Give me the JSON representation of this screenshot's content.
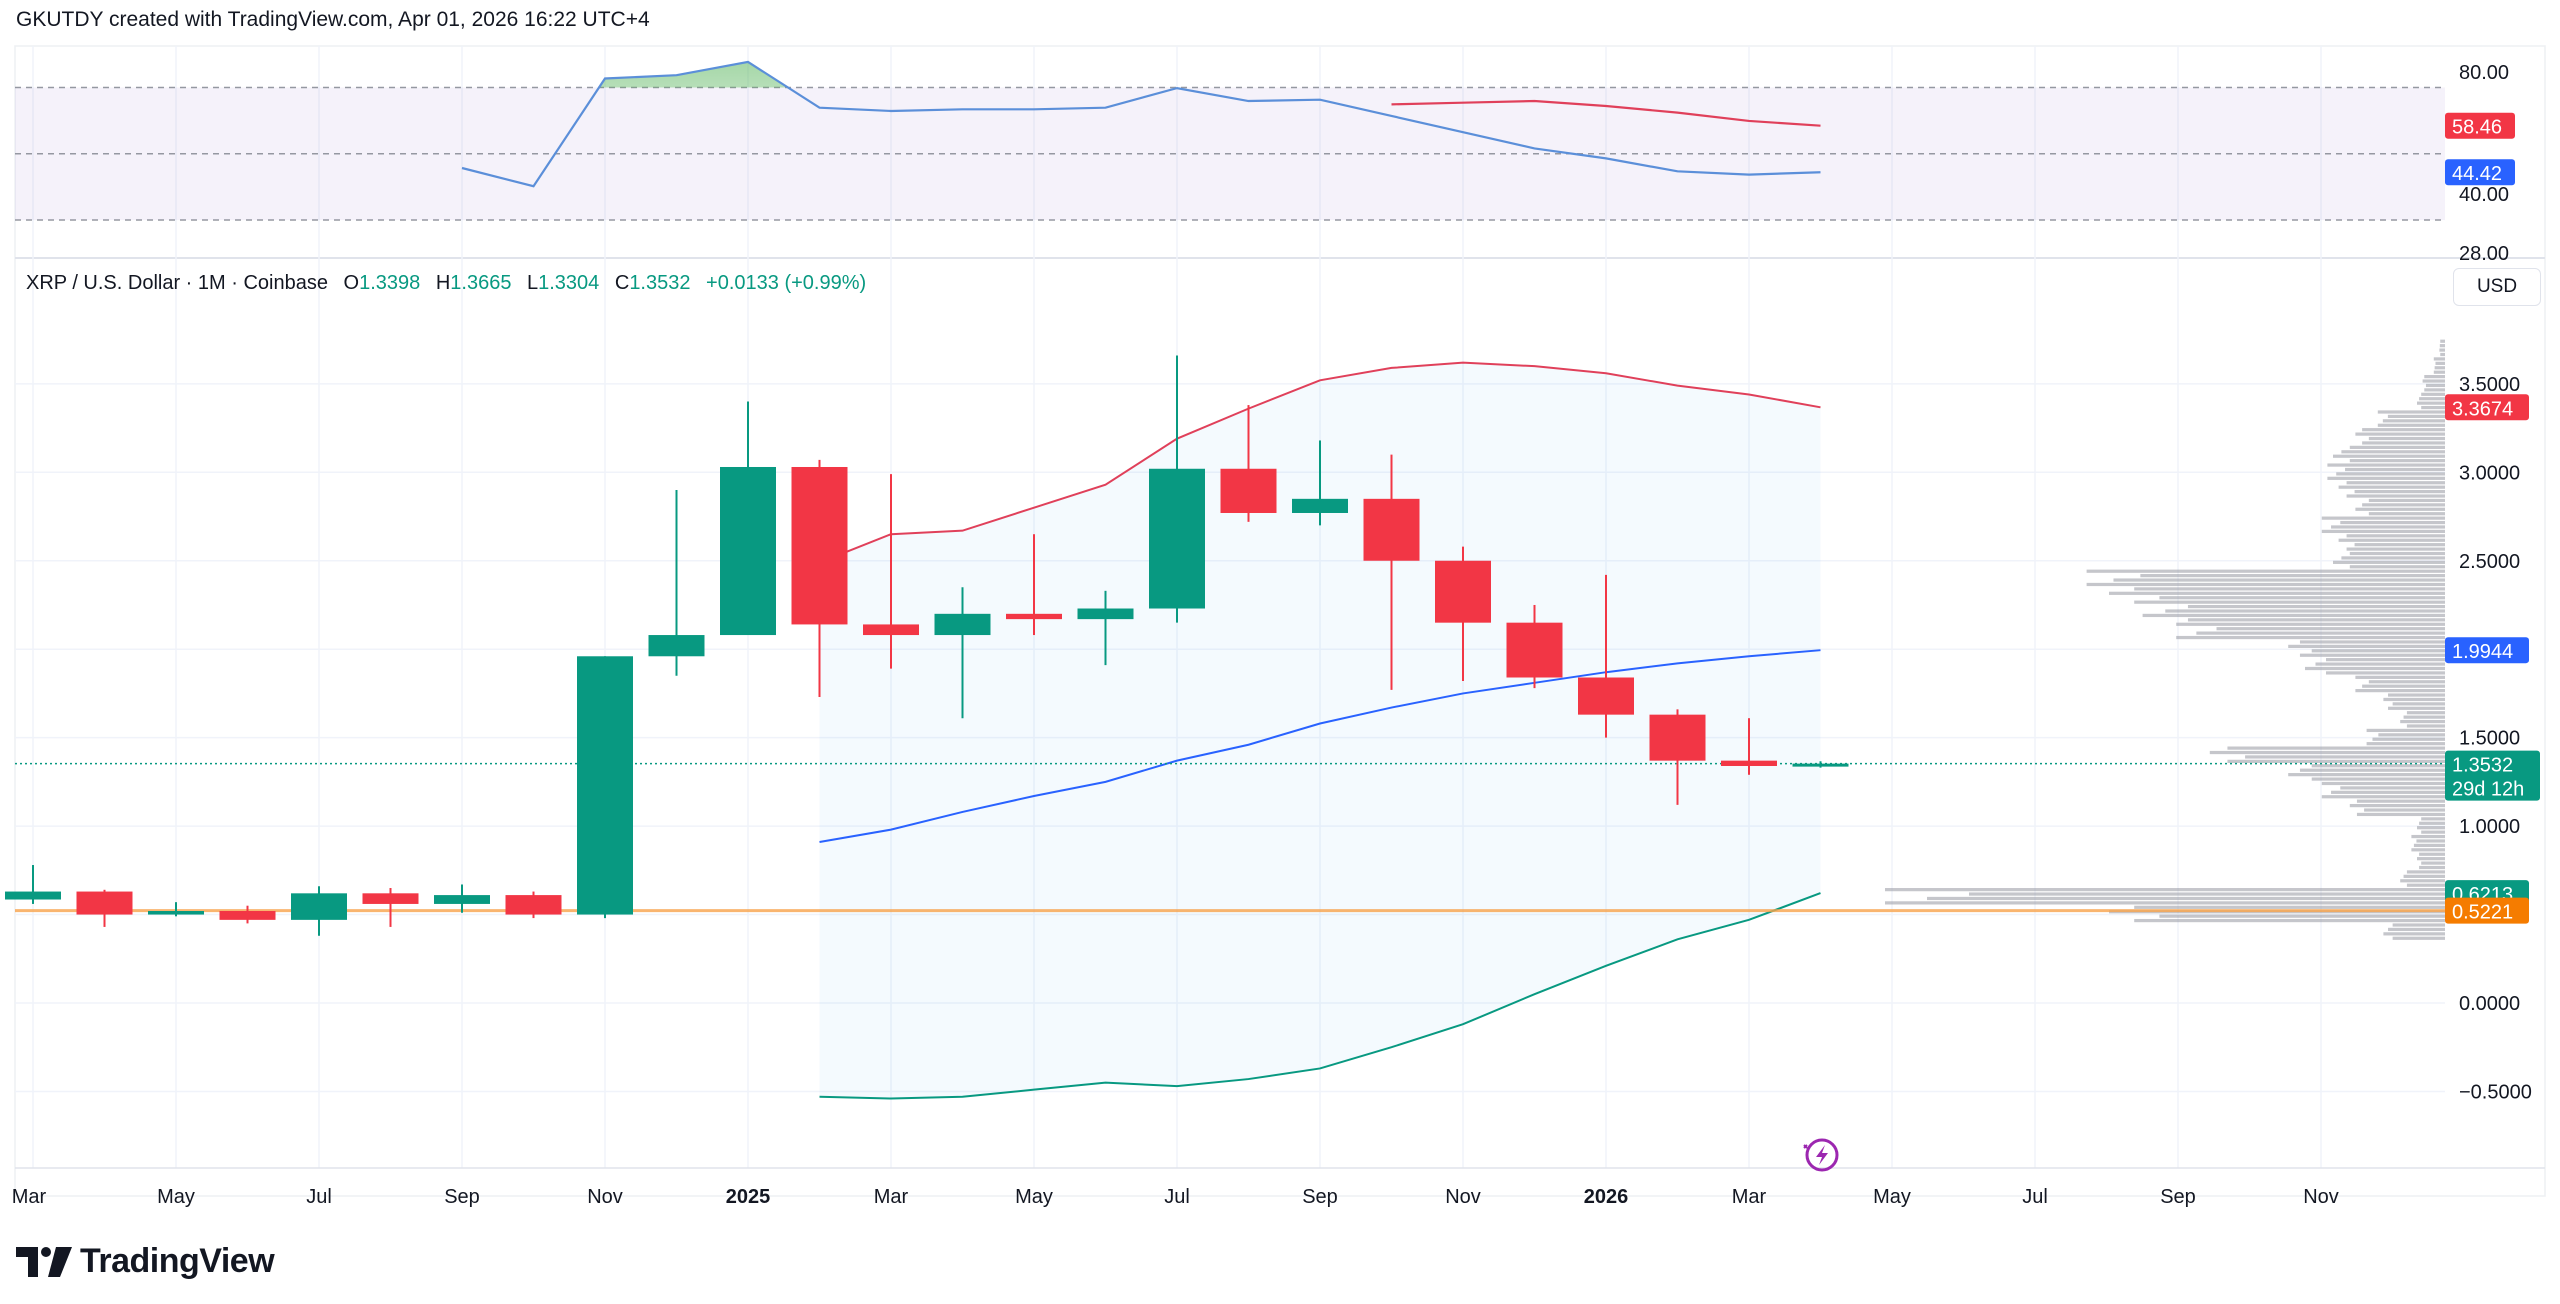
{
  "header": {
    "text": "GKUTDY created with TradingView.com, Apr 01, 2026 16:22 UTC+4"
  },
  "legend": {
    "symbol": "XRP / U.S. Dollar · 1M · Coinbase",
    "o_label": "O",
    "o": "1.3398",
    "h_label": "H",
    "h": "1.3665",
    "l_label": "L",
    "l": "1.3304",
    "c_label": "C",
    "c": "1.3532",
    "change": "+0.0133 (+0.99%)"
  },
  "currency_button": "USD",
  "footer": {
    "logo_text": "TradingView"
  },
  "colors": {
    "up": "#089981",
    "down": "#f23645",
    "bb_upper": "#e0405a",
    "bb_basis": "#2962ff",
    "bb_lower": "#089981",
    "hline": "#f7a24b",
    "rsi": "#5b8fd9",
    "rsi_ma": "#e0405a",
    "rsi_band": "#7e57c2"
  },
  "chart_data": [
    {
      "type": "line",
      "pane": "RSI",
      "yticks": [
        "80.00",
        "40.00",
        "28.00"
      ],
      "bands": [
        70,
        50,
        30
      ],
      "series": [
        {
          "key": "rsi",
          "start_month": "2024-09",
          "values": [
            45.7,
            40.2,
            72.7,
            73.7,
            77.7,
            63.9,
            62.9,
            63.4,
            63.4,
            63.9,
            69.8,
            65.9,
            66.3,
            61.4,
            56.5,
            51.6,
            48.6,
            44.7,
            43.7,
            44.42
          ]
        },
        {
          "key": "rsi_ma",
          "start_month": "2025-10",
          "values": [
            64.9,
            65.4,
            65.9,
            64.4,
            62.4,
            59.9,
            58.46
          ]
        }
      ],
      "last_labels": {
        "rsi": "44.42",
        "rsi_ma": "58.46"
      }
    },
    {
      "type": "candlestick",
      "pane": "price",
      "ylim": [
        -0.62,
        3.9
      ],
      "yticks": [
        "3.5000",
        "3.0000",
        "2.5000",
        "1.5000",
        "1.0000",
        "0.0000",
        "−0.5000"
      ],
      "xticks": [
        "Mar",
        "May",
        "Jul",
        "Sep",
        "Nov",
        "2025",
        "Mar",
        "May",
        "Jul",
        "Sep",
        "Nov",
        "2026",
        "Mar",
        "May",
        "Jul",
        "Sep",
        "Nov"
      ],
      "start_month": "2024-03",
      "ohlc": [
        [
          0.585,
          0.78,
          0.56,
          0.63
        ],
        [
          0.63,
          0.64,
          0.43,
          0.5
        ],
        [
          0.5,
          0.57,
          0.49,
          0.52
        ],
        [
          0.52,
          0.55,
          0.45,
          0.47
        ],
        [
          0.47,
          0.66,
          0.38,
          0.62
        ],
        [
          0.62,
          0.65,
          0.43,
          0.56
        ],
        [
          0.56,
          0.67,
          0.51,
          0.61
        ],
        [
          0.61,
          0.63,
          0.48,
          0.5
        ],
        [
          0.5,
          1.96,
          0.48,
          1.96
        ],
        [
          1.96,
          2.9,
          1.85,
          2.08
        ],
        [
          2.08,
          3.4,
          2.08,
          3.03
        ],
        [
          3.03,
          3.07,
          1.73,
          2.14
        ],
        [
          2.14,
          2.99,
          1.89,
          2.08
        ],
        [
          2.08,
          2.35,
          1.61,
          2.2
        ],
        [
          2.2,
          2.65,
          2.08,
          2.17
        ],
        [
          2.17,
          2.33,
          1.91,
          2.23
        ],
        [
          2.23,
          3.66,
          2.15,
          3.02
        ],
        [
          3.02,
          3.38,
          2.72,
          2.77
        ],
        [
          2.77,
          3.18,
          2.7,
          2.85
        ],
        [
          2.85,
          3.1,
          1.77,
          2.5
        ],
        [
          2.5,
          2.58,
          1.82,
          2.15
        ],
        [
          2.15,
          2.25,
          1.78,
          1.84
        ],
        [
          1.84,
          2.42,
          1.5,
          1.63
        ],
        [
          1.63,
          1.66,
          1.12,
          1.37
        ],
        [
          1.37,
          1.61,
          1.29,
          1.3398
        ],
        [
          1.3398,
          1.3665,
          1.3304,
          1.3532
        ]
      ],
      "bollinger": {
        "start_month": "2025-02",
        "upper": [
          2.49,
          2.65,
          2.67,
          2.8,
          2.93,
          3.19,
          3.36,
          3.52,
          3.59,
          3.62,
          3.6,
          3.56,
          3.49,
          3.44,
          3.3674
        ],
        "basis": [
          0.91,
          0.98,
          1.08,
          1.17,
          1.25,
          1.37,
          1.46,
          1.58,
          1.67,
          1.75,
          1.81,
          1.87,
          1.92,
          1.96,
          1.9944
        ],
        "lower": [
          -0.53,
          -0.54,
          -0.53,
          -0.49,
          -0.45,
          -0.47,
          -0.43,
          -0.37,
          -0.25,
          -0.12,
          0.05,
          0.21,
          0.36,
          0.47,
          0.6213
        ]
      },
      "horizontal_line": 0.5221,
      "current_price": 1.3532,
      "countdown": "29d 12h",
      "price_labels": {
        "bb_upper": "3.3674",
        "bb_basis": "1.9944",
        "current": "1.3532",
        "bb_lower": "0.6213",
        "hline": "0.5221"
      },
      "volume_profile": {
        "prices": [
          0.4,
          0.5,
          0.6,
          0.7,
          0.8,
          0.9,
          1.0,
          1.1,
          1.2,
          1.3,
          1.4,
          1.5,
          1.6,
          1.7,
          1.8,
          1.9,
          2.0,
          2.1,
          2.2,
          2.3,
          2.4,
          2.5,
          2.6,
          2.7,
          2.8,
          2.9,
          3.0,
          3.1,
          3.2,
          3.3,
          3.4,
          3.5,
          3.6,
          3.7
        ],
        "relative_volume": [
          11,
          60,
          100,
          8,
          5,
          6,
          5,
          17,
          22,
          28,
          42,
          14,
          8,
          11,
          16,
          25,
          28,
          48,
          54,
          60,
          64,
          20,
          19,
          22,
          16,
          19,
          21,
          20,
          16,
          12,
          5,
          4,
          2,
          1
        ]
      }
    }
  ]
}
